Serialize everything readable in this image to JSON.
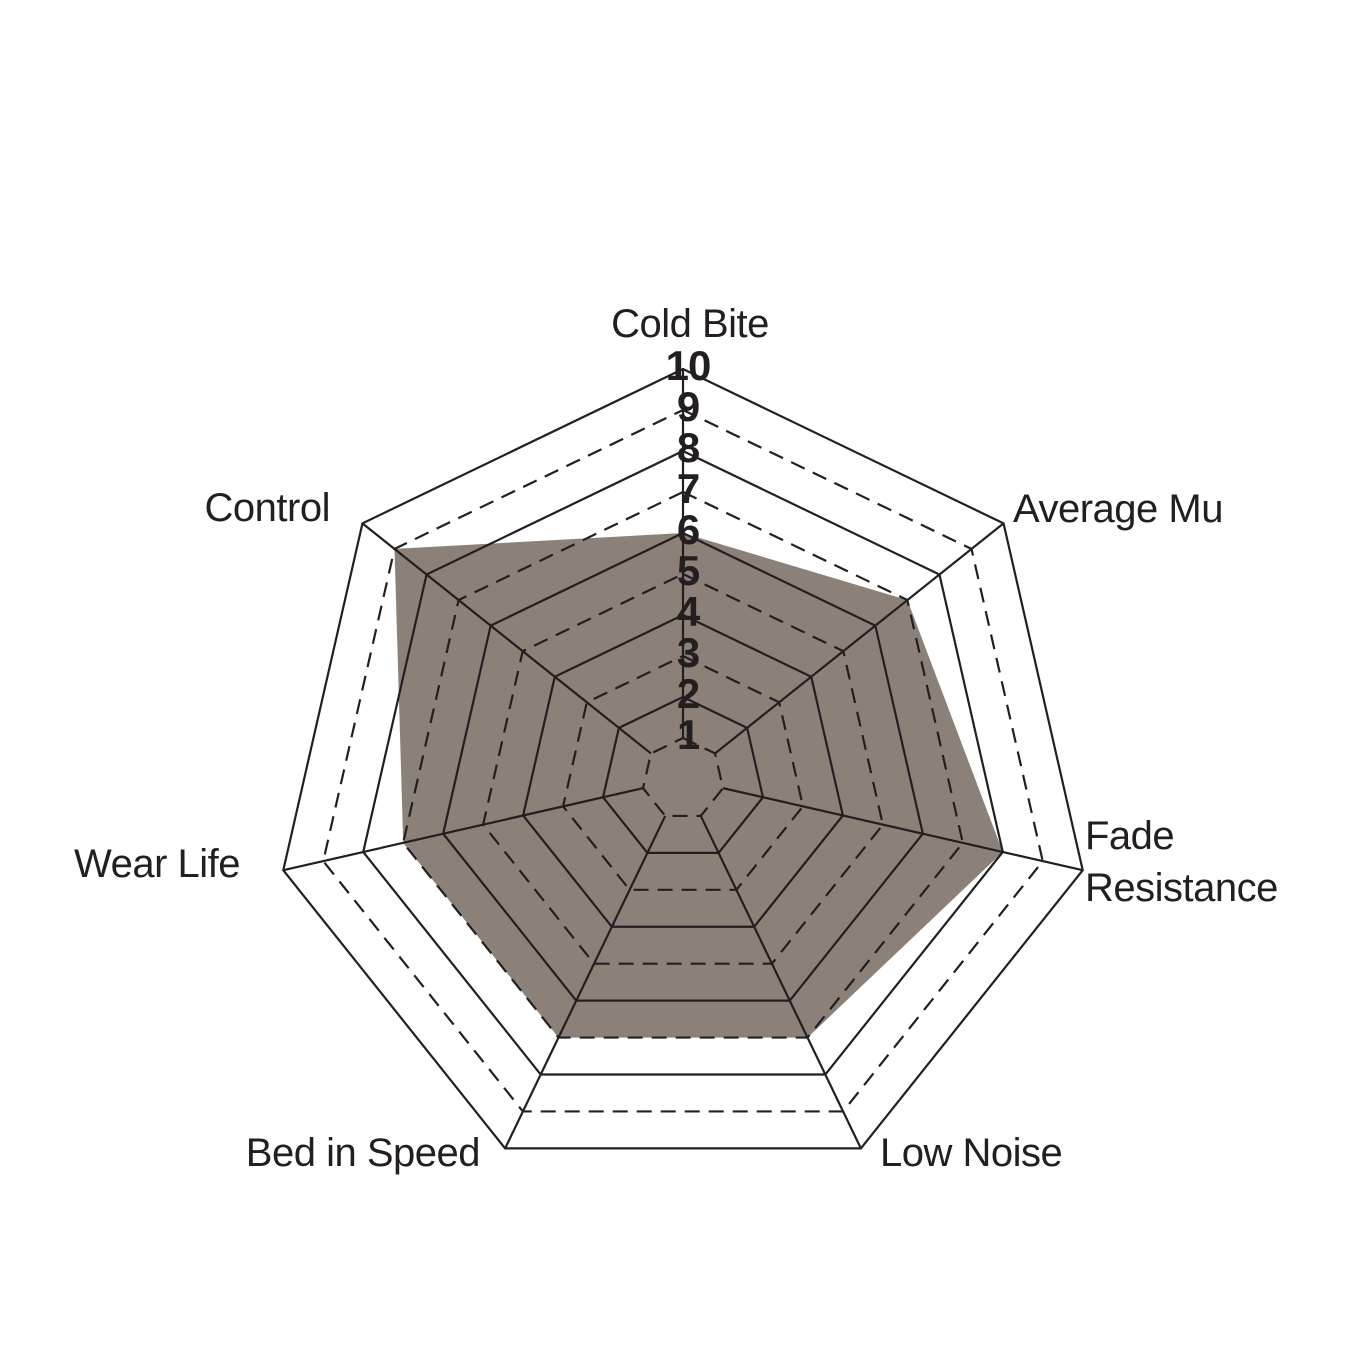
{
  "chart_data": {
    "type": "radar",
    "title": "",
    "categories": [
      "Cold Bite",
      "Average Mu",
      "Fade Resistance",
      "Low Noise",
      "Bed in Speed",
      "Wear Life",
      "Control"
    ],
    "values": [
      6,
      7,
      8,
      7,
      7,
      7,
      9
    ],
    "label_lines": [
      [
        "Cold Bite"
      ],
      [
        "Average Mu"
      ],
      [
        "Fade",
        "Resistance"
      ],
      [
        "Low Noise"
      ],
      [
        "Bed in Speed"
      ],
      [
        "Wear Life"
      ],
      [
        "Control"
      ]
    ],
    "scale": {
      "min": 0,
      "max": 10,
      "ring_ticks": [
        1,
        2,
        3,
        4,
        5,
        6,
        7,
        8,
        9,
        10
      ],
      "ring_style": "even rings solid, odd rings dashed"
    },
    "axis_tick_labels": [
      "10",
      "9",
      "8",
      "7",
      "6",
      "5",
      "4",
      "3",
      "2",
      "1"
    ],
    "grid": true,
    "legend": "none",
    "colors": {
      "fill": "#8c8179",
      "line": "#231f20",
      "text": "#231f20",
      "background": "#ffffff"
    }
  }
}
